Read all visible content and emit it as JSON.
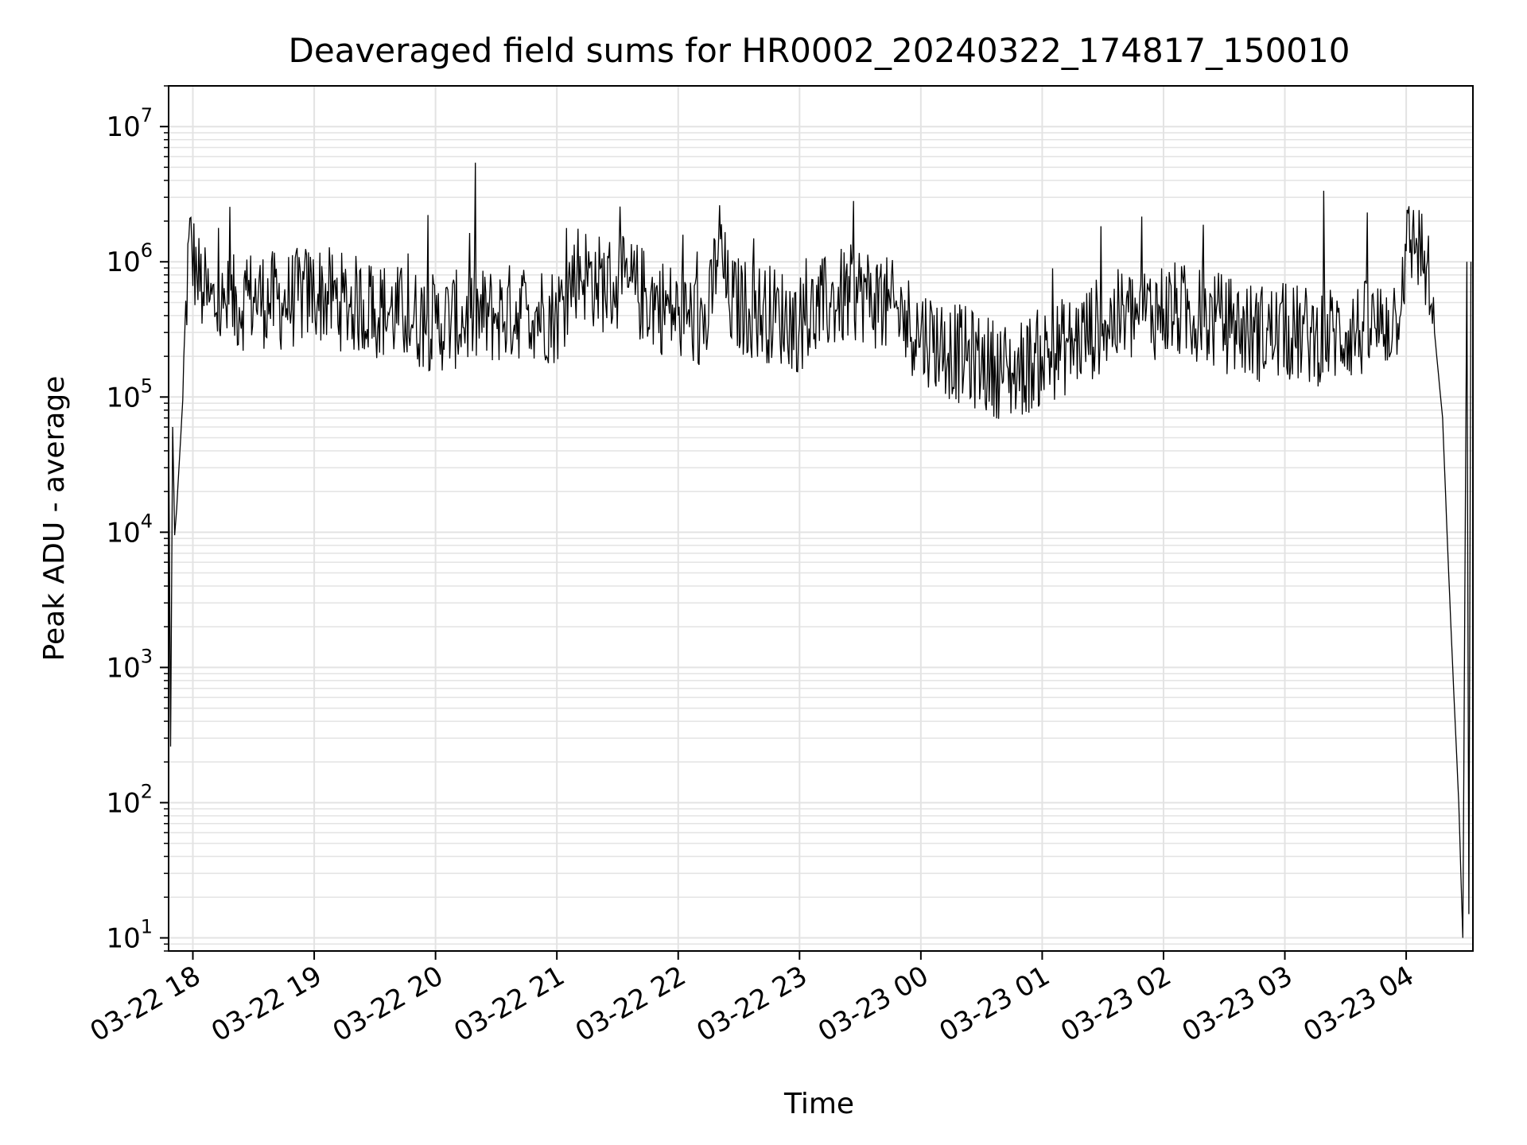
{
  "chart_data": {
    "type": "line",
    "title": "Deaveraged field sums for HR0002_20240322_174817_150010",
    "xlabel": "Time",
    "ylabel": "Peak ADU - average",
    "yscale": "log",
    "ylim": [
      8,
      20000000
    ],
    "xlim": [
      "2024-03-22 17:48",
      "2024-03-23 04:33"
    ],
    "grid": true,
    "line_color": "#000000",
    "grid_color": "#e3e3e3",
    "y_ticks": [
      {
        "base": "10",
        "exp": "1"
      },
      {
        "base": "10",
        "exp": "2"
      },
      {
        "base": "10",
        "exp": "3"
      },
      {
        "base": "10",
        "exp": "4"
      },
      {
        "base": "10",
        "exp": "5"
      },
      {
        "base": "10",
        "exp": "6"
      },
      {
        "base": "10",
        "exp": "7"
      }
    ],
    "x_ticks": [
      {
        "label": "03-22 18",
        "t": "2024-03-22 18:00"
      },
      {
        "label": "03-22 19",
        "t": "2024-03-22 19:00"
      },
      {
        "label": "03-22 20",
        "t": "2024-03-22 20:00"
      },
      {
        "label": "03-22 21",
        "t": "2024-03-22 21:00"
      },
      {
        "label": "03-22 22",
        "t": "2024-03-22 22:00"
      },
      {
        "label": "03-22 23",
        "t": "2024-03-22 23:00"
      },
      {
        "label": "03-23 00",
        "t": "2024-03-23 00:00"
      },
      {
        "label": "03-23 01",
        "t": "2024-03-23 01:00"
      },
      {
        "label": "03-23 02",
        "t": "2024-03-23 02:00"
      },
      {
        "label": "03-23 03",
        "t": "2024-03-23 03:00"
      },
      {
        "label": "03-23 04",
        "t": "2024-03-23 04:00"
      }
    ],
    "series": [
      {
        "x": [
          "2024-03-22 17:48",
          "2024-03-22 17:49",
          "2024-03-22 17:50",
          "2024-03-22 17:51",
          "2024-03-22 17:52",
          "2024-03-22 17:55",
          "2024-03-22 17:58",
          "2024-03-22 18:02",
          "2024-03-22 18:05",
          "2024-03-22 18:08",
          "2024-03-22 18:15",
          "2024-03-22 18:30",
          "2024-03-22 18:45",
          "2024-03-22 19:00",
          "2024-03-22 19:15",
          "2024-03-22 19:30",
          "2024-03-22 19:45",
          "2024-03-22 20:00",
          "2024-03-22 20:15",
          "2024-03-22 20:30",
          "2024-03-22 20:45",
          "2024-03-22 21:00",
          "2024-03-22 21:10",
          "2024-03-22 21:20",
          "2024-03-22 21:35",
          "2024-03-22 21:50",
          "2024-03-22 22:00",
          "2024-03-22 22:15",
          "2024-03-22 22:20",
          "2024-03-22 22:25",
          "2024-03-22 22:35",
          "2024-03-22 22:50",
          "2024-03-22 23:00",
          "2024-03-22 23:15",
          "2024-03-22 23:30",
          "2024-03-22 23:45",
          "2024-03-23 00:00",
          "2024-03-23 00:15",
          "2024-03-23 00:30",
          "2024-03-23 00:45",
          "2024-03-23 01:00",
          "2024-03-23 01:15",
          "2024-03-23 01:30",
          "2024-03-23 01:45",
          "2024-03-23 02:00",
          "2024-03-23 02:15",
          "2024-03-23 02:30",
          "2024-03-23 02:45",
          "2024-03-23 03:00",
          "2024-03-23 03:15",
          "2024-03-23 03:30",
          "2024-03-23 03:45",
          "2024-03-23 03:55",
          "2024-03-23 04:00",
          "2024-03-23 04:05",
          "2024-03-23 04:10",
          "2024-03-23 04:14",
          "2024-03-23 04:18",
          "2024-03-23 04:21",
          "2024-03-23 04:23",
          "2024-03-23 04:26",
          "2024-03-23 04:28",
          "2024-03-23 04:30",
          "2024-03-23 04:31",
          "2024-03-23 04:32"
        ],
        "y": [
          70000,
          260,
          60000,
          9500,
          15000,
          95000,
          1500000,
          800000,
          600000,
          500000,
          450000,
          550000,
          500000,
          600000,
          500000,
          450000,
          400000,
          350000,
          380000,
          400000,
          450000,
          400000,
          900000,
          700000,
          650000,
          500000,
          400000,
          350000,
          1500000,
          500000,
          450000,
          400000,
          350000,
          500000,
          600000,
          450000,
          300000,
          220000,
          180000,
          150000,
          200000,
          250000,
          350000,
          400000,
          450000,
          400000,
          350000,
          300000,
          300000,
          280000,
          300000,
          320000,
          400000,
          1200000,
          1500000,
          900000,
          300000,
          70000,
          5000,
          1000,
          100,
          10,
          1000000,
          15,
          1000000
        ]
      }
    ]
  }
}
